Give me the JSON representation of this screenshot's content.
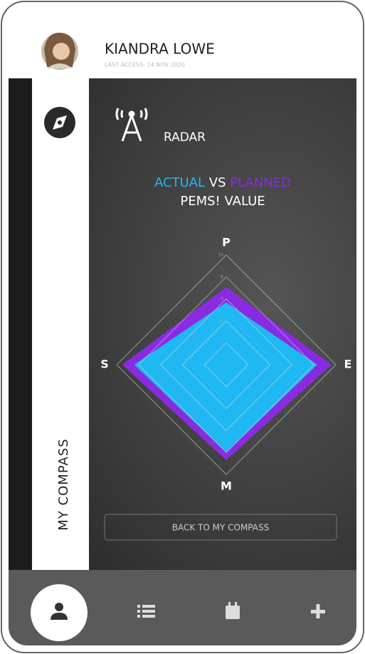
{
  "header": {
    "name": "KIANDRA LOWE",
    "last_access": "LAST ACCESS: 14 NOV 2020"
  },
  "sidebar": {
    "label": "MY COMPASS"
  },
  "page": {
    "title": "RADAR",
    "button": "BACK TO MY COMPASS"
  },
  "chart_data": {
    "type": "radar",
    "connector": "VS",
    "subtitle": "PEMS! VALUE",
    "categories": [
      "P",
      "E",
      "M",
      "S"
    ],
    "series": [
      {
        "name": "PLANNED",
        "color": "#8a2be2",
        "values": [
          7,
          9.5,
          8.6,
          9.4
        ]
      },
      {
        "name": "ACTUAL",
        "color": "#1fb8f2",
        "values": [
          5.6,
          8.2,
          7.9,
          8.3
        ]
      }
    ],
    "ylim": [
      0,
      10
    ],
    "yticks": [
      2,
      4,
      6,
      8,
      10
    ],
    "grid": true
  }
}
